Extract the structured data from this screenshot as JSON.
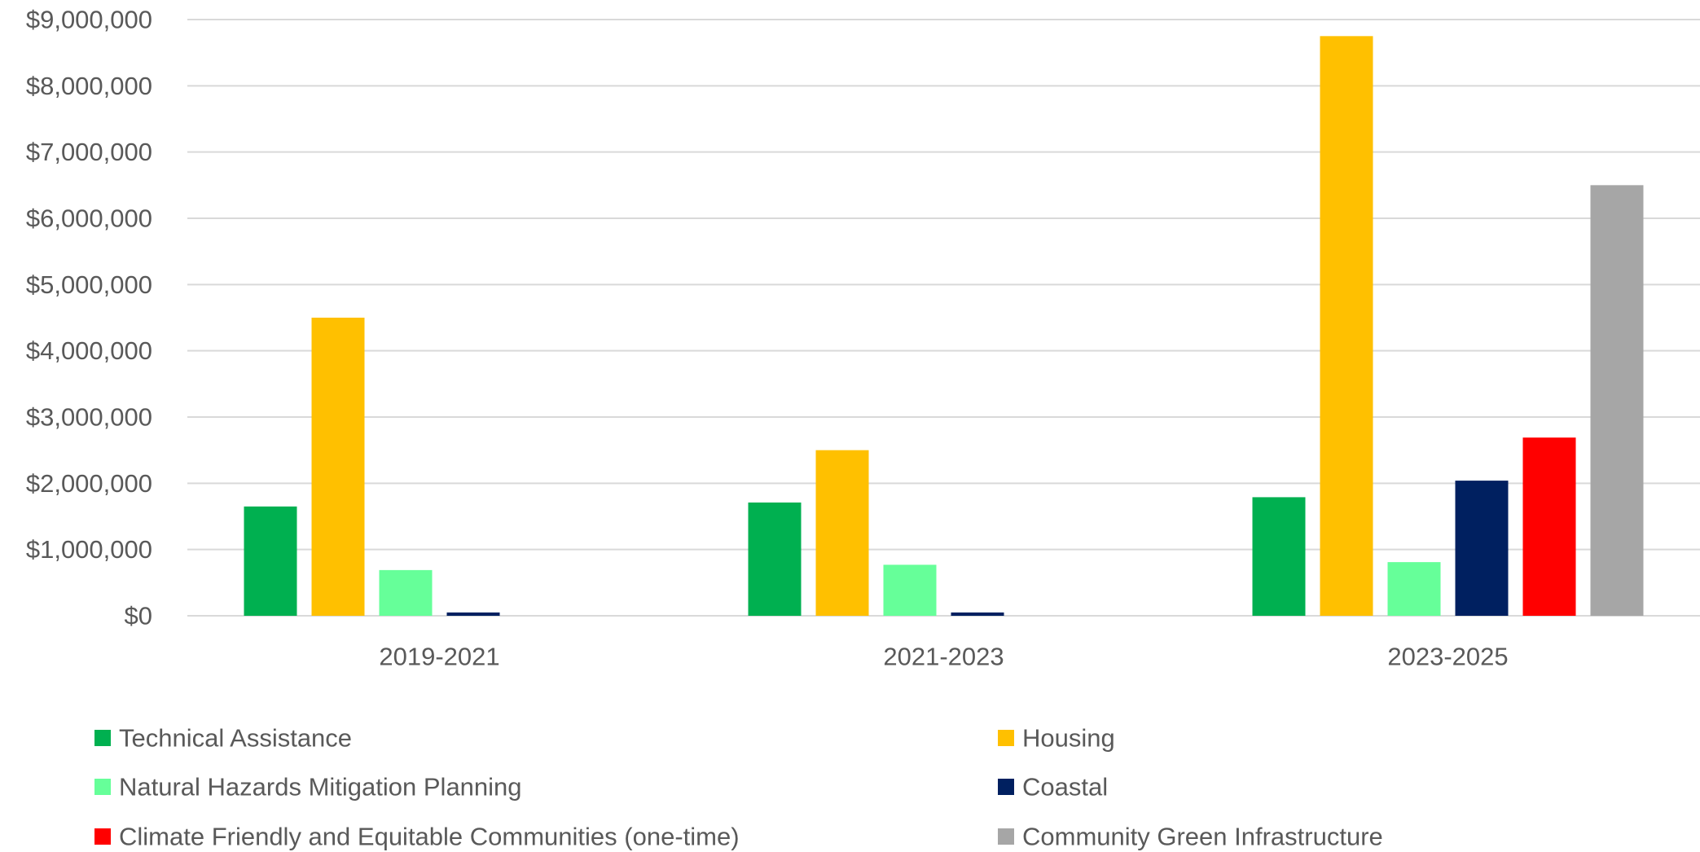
{
  "chart_data": {
    "type": "bar",
    "title": "",
    "xlabel": "",
    "ylabel": "",
    "categories": [
      "2019-2021",
      "2021-2023",
      "2023-2025"
    ],
    "ylim": [
      0,
      9000000
    ],
    "ytick_values": [
      0,
      1000000,
      2000000,
      3000000,
      4000000,
      5000000,
      6000000,
      7000000,
      8000000,
      9000000
    ],
    "ytick_labels": [
      "$0",
      "$1,000,000",
      "$2,000,000",
      "$3,000,000",
      "$4,000,000",
      "$5,000,000",
      "$6,000,000",
      "$7,000,000",
      "$8,000,000",
      "$9,000,000"
    ],
    "grid": true,
    "legend_position": "bottom",
    "series": [
      {
        "name": "Technical Assistance",
        "color": "#00B050",
        "values": [
          1650000,
          1710000,
          1790000
        ]
      },
      {
        "name": "Housing",
        "color": "#FFC000",
        "values": [
          4500000,
          2500000,
          8750000
        ]
      },
      {
        "name": "Natural Hazards Mitigation Planning",
        "color": "#66FF99",
        "values": [
          690000,
          770000,
          810000
        ]
      },
      {
        "name": "Coastal",
        "color": "#002060",
        "values": [
          50000,
          50000,
          2040000
        ]
      },
      {
        "name": "Climate Friendly and Equitable Communities (one-time)",
        "color": "#FF0000",
        "values": [
          0,
          0,
          2690000
        ]
      },
      {
        "name": "Community Green Infrastructure",
        "color": "#A6A6A6",
        "values": [
          0,
          0,
          6500000
        ]
      }
    ]
  }
}
